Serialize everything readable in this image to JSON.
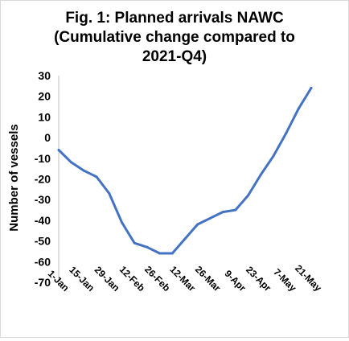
{
  "chart_data": {
    "type": "line",
    "title_lines": [
      "Fig. 1: Planned arrivals NAWC",
      "(Cumulative change compared to",
      "2021-Q4)"
    ],
    "xlabel": "",
    "ylabel": "Number of vessels",
    "ylim": [
      -70,
      30
    ],
    "yticks": [
      30,
      20,
      10,
      0,
      -10,
      -20,
      -30,
      -40,
      -50,
      -60,
      -70
    ],
    "xticks": [
      "1-Jan",
      "15-Jan",
      "29-Jan",
      "12-Feb",
      "26-Feb",
      "12-Mar",
      "26-Mar",
      "9-Apr",
      "23-Apr",
      "7-May",
      "21-May"
    ],
    "grid": false,
    "legend": "none",
    "series_color": "#4472C4",
    "series": [
      {
        "x": [
          "1-Jan",
          "8-Jan",
          "15-Jan",
          "22-Jan",
          "29-Jan",
          "5-Feb",
          "12-Feb",
          "19-Feb",
          "26-Feb",
          "5-Mar",
          "12-Mar",
          "19-Mar",
          "26-Mar",
          "2-Apr",
          "9-Apr",
          "16-Apr",
          "23-Apr",
          "30-Apr",
          "7-May",
          "14-May",
          "21-May"
        ],
        "values": [
          -6,
          -12,
          -16,
          -19,
          -27,
          -41,
          -51,
          -53,
          -56,
          -56,
          -49,
          -42,
          -39,
          -36,
          -35,
          -28,
          -18,
          -9,
          2,
          14,
          24
        ]
      }
    ]
  }
}
